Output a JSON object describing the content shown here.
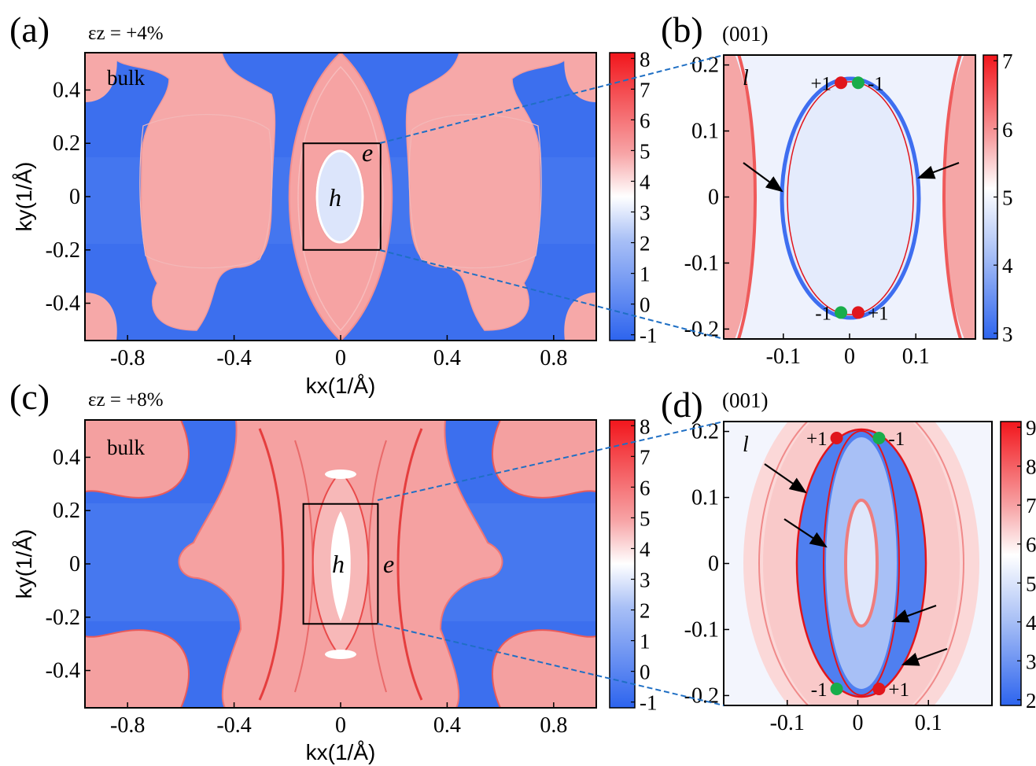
{
  "figure_colors": {
    "map_low": "#2d64ee",
    "map_mid": "#ffffff",
    "map_high": "#f2161c",
    "weyl_positive": "#e0161c",
    "weyl_negative": "#18ad4a",
    "zoom_line": "#1f6fc4"
  },
  "chart_data": [
    {
      "panel": "(a)",
      "type": "heatmap",
      "title": "εz = +4%",
      "corner_label": "bulk",
      "xlabel": "kx(1/Å)",
      "ylabel": "ky(1/Å)",
      "xlim": [
        -0.96,
        0.96
      ],
      "ylim": [
        -0.54,
        0.54
      ],
      "xticks": [
        -0.8,
        -0.4,
        0,
        0.4,
        0.8
      ],
      "xtick_labels": [
        "-0.8",
        "-0.4",
        "0",
        "0.4",
        "0.8"
      ],
      "yticks": [
        0.4,
        0.2,
        0,
        -0.2,
        -0.4
      ],
      "ytick_labels": [
        "0.4",
        "0.2",
        "0",
        "-0.2",
        "-0.4"
      ],
      "colorbar": {
        "range": [
          -1,
          8
        ],
        "ticks": [
          "8",
          "7",
          "6",
          "5",
          "4",
          "3",
          "2",
          "1",
          "0",
          "-1"
        ]
      },
      "pocket_labels": [
        "h",
        "e"
      ],
      "zoom_box": {
        "x": [
          -0.14,
          0.15
        ],
        "y": [
          -0.2,
          0.2
        ]
      }
    },
    {
      "panel": "(b)",
      "type": "heatmap",
      "title": "(001)",
      "corner_label": "l",
      "xlim": [
        -0.19,
        0.19
      ],
      "ylim": [
        -0.215,
        0.215
      ],
      "xticks": [
        -0.1,
        0,
        0.1
      ],
      "xtick_labels": [
        "-0.1",
        "0",
        "0.1"
      ],
      "yticks": [
        0.2,
        0.1,
        0,
        -0.1,
        -0.2
      ],
      "ytick_labels": [
        "0.2",
        "0.1",
        "0",
        "-0.1",
        "-0.2"
      ],
      "colorbar": {
        "range": [
          2.6,
          7.6
        ],
        "ticks": [
          "7",
          "6",
          "5",
          "4",
          "3"
        ]
      },
      "weyl_points": [
        {
          "x": -0.013,
          "y": 0.173,
          "chirality": "+1"
        },
        {
          "x": 0.013,
          "y": 0.173,
          "chirality": "-1"
        },
        {
          "x": -0.013,
          "y": -0.175,
          "chirality": "-1"
        },
        {
          "x": 0.013,
          "y": -0.175,
          "chirality": "+1"
        }
      ]
    },
    {
      "panel": "(c)",
      "type": "heatmap",
      "title": "εz = +8%",
      "corner_label": "bulk",
      "xlabel": "kx(1/Å)",
      "ylabel": "ky(1/Å)",
      "xlim": [
        -0.96,
        0.96
      ],
      "ylim": [
        -0.54,
        0.54
      ],
      "xticks": [
        -0.8,
        -0.4,
        0,
        0.4,
        0.8
      ],
      "xtick_labels": [
        "-0.8",
        "-0.4",
        "0",
        "0.4",
        "0.8"
      ],
      "yticks": [
        0.4,
        0.2,
        0,
        -0.2,
        -0.4
      ],
      "ytick_labels": [
        "0.4",
        "0.2",
        "0",
        "-0.2",
        "-0.4"
      ],
      "colorbar": {
        "range": [
          -1,
          8
        ],
        "ticks": [
          "8",
          "7",
          "6",
          "5",
          "4",
          "3",
          "2",
          "1",
          "0",
          "-1"
        ]
      },
      "pocket_labels": [
        "h",
        "e"
      ],
      "zoom_box": {
        "x": [
          -0.14,
          0.14
        ],
        "y": [
          -0.225,
          0.225
        ]
      }
    },
    {
      "panel": "(d)",
      "type": "heatmap",
      "title": "(001)",
      "corner_label": "l",
      "xlim": [
        -0.19,
        0.19
      ],
      "ylim": [
        -0.215,
        0.215
      ],
      "xticks": [
        -0.1,
        0,
        0.1
      ],
      "xtick_labels": [
        "-0.1",
        "0",
        "0.1"
      ],
      "yticks": [
        0.2,
        0.1,
        0,
        -0.1,
        -0.2
      ],
      "ytick_labels": [
        "0.2",
        "0.1",
        "0",
        "-0.1",
        "-0.2"
      ],
      "colorbar": {
        "range": [
          2,
          9
        ],
        "ticks": [
          "9",
          "8",
          "7",
          "6",
          "5",
          "4",
          "3",
          "2"
        ]
      },
      "weyl_points": [
        {
          "x": -0.03,
          "y": 0.19,
          "chirality": "+1"
        },
        {
          "x": 0.03,
          "y": 0.19,
          "chirality": "-1"
        },
        {
          "x": -0.03,
          "y": -0.19,
          "chirality": "-1"
        },
        {
          "x": 0.03,
          "y": -0.19,
          "chirality": "+1"
        }
      ]
    }
  ]
}
